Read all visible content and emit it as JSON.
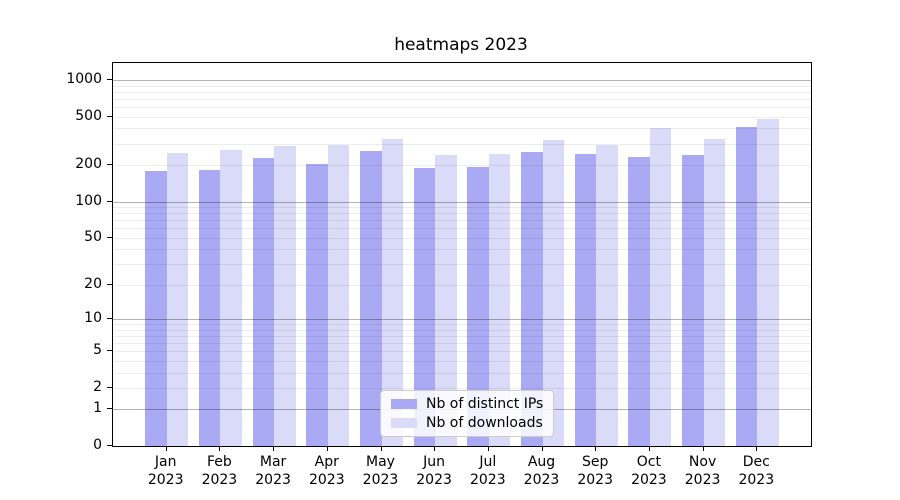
{
  "chart_data": {
    "type": "bar",
    "title": "heatmaps 2023",
    "categories": [
      "Jan 2023",
      "Feb 2023",
      "Mar 2023",
      "Apr 2023",
      "May 2023",
      "Jun 2023",
      "Jul 2023",
      "Aug 2023",
      "Sep 2023",
      "Oct 2023",
      "Nov 2023",
      "Dec 2023"
    ],
    "series": [
      {
        "name": "Nb of distinct IPs",
        "color": "#a9a9f4",
        "values": [
          179,
          181,
          230,
          206,
          261,
          189,
          193,
          256,
          246,
          234,
          241,
          413
        ]
      },
      {
        "name": "Nb of downloads",
        "color": "#dadaf9",
        "values": [
          250,
          266,
          286,
          291,
          329,
          241,
          245,
          320,
          292,
          405,
          326,
          475
        ]
      }
    ],
    "xlabel": "",
    "ylabel": "",
    "yscale": "log1p",
    "ylim": [
      0,
      1380
    ],
    "ytick_values": [
      0,
      1,
      2,
      5,
      10,
      20,
      50,
      100,
      200,
      500,
      1000
    ],
    "ytick_labels": [
      "0",
      "1",
      "2",
      "5",
      "10",
      "20",
      "50",
      "100",
      "200",
      "500",
      "1000"
    ],
    "minor_grid_values": [
      2,
      3,
      4,
      5,
      6,
      7,
      8,
      9,
      20,
      30,
      40,
      50,
      60,
      70,
      80,
      90,
      200,
      300,
      400,
      500,
      600,
      700,
      800,
      900
    ],
    "major_grid_values": [
      1,
      10,
      100,
      1000
    ],
    "grid": "both",
    "legend_position": "lower center",
    "colors": {
      "grid_major": "#b2b2b2",
      "grid_minor": "#ededed",
      "axis": "#000000",
      "text": "#000000",
      "background": "#ffffff"
    }
  }
}
